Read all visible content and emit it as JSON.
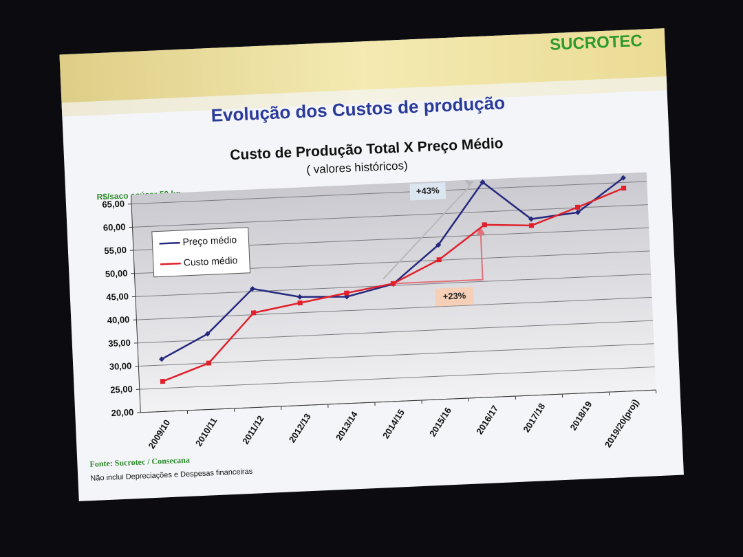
{
  "slide": {
    "title": "Evolução dos Custos de produção",
    "logo": "SUCROTEC",
    "source": "Fonte: Sucrotec / Consecana",
    "note": "Não inclui Depreciações e Despesas financeiras"
  },
  "chart_data": {
    "type": "line",
    "title": "Custo de Produção Total X Preço Médio",
    "subtitle": "( valores históricos)",
    "y_label": "R$/saco açúcar 50 kg",
    "categories": [
      "2009/10",
      "2010/11",
      "2011/12",
      "2012/13",
      "2013/14",
      "2014/15",
      "2015/16",
      "2016/17",
      "2017/18",
      "2018/19",
      "2019/20(proj)"
    ],
    "series": [
      {
        "name": "Preço médio",
        "color": "#27297e",
        "values": [
          31.3,
          36.3,
          45.6,
          43.4,
          43.0,
          45.3,
          53.3,
          66.4,
          58.0,
          59.0,
          66.0
        ]
      },
      {
        "name": "Custo médio",
        "color": "#e0202a",
        "values": [
          26.5,
          30.0,
          40.4,
          42.1,
          43.8,
          45.4,
          50.1,
          57.2,
          56.6,
          60.1,
          63.8
        ]
      }
    ],
    "ylim": [
      20,
      67
    ],
    "yticks": [
      {
        "value": 20,
        "label": "20,00"
      },
      {
        "value": 25,
        "label": "25,00"
      },
      {
        "value": 30,
        "label": "30,00"
      },
      {
        "value": 35,
        "label": "35,00"
      },
      {
        "value": 40,
        "label": "40,00"
      },
      {
        "value": 45,
        "label": "45,00"
      },
      {
        "value": 50,
        "label": "50,00"
      },
      {
        "value": 55,
        "label": "55,00"
      },
      {
        "value": 60,
        "label": "60,00"
      },
      {
        "value": 65,
        "label": "65,00"
      }
    ],
    "grid": true,
    "legend": "upper-left",
    "annotations": [
      {
        "text": "+43%"
      },
      {
        "text": "+23%"
      }
    ]
  }
}
